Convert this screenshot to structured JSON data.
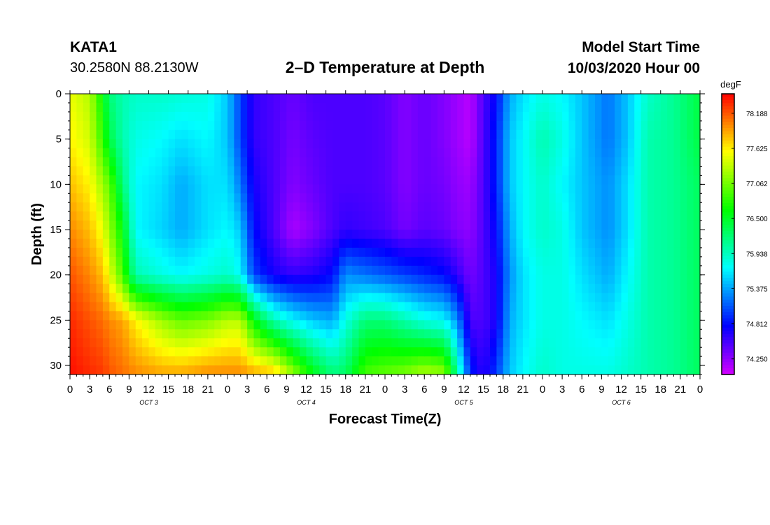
{
  "header": {
    "station": "KATA1",
    "coords": "30.2580N 88.2130W",
    "model_start_label": "Model Start Time",
    "model_start_value": "10/03/2020 Hour 00"
  },
  "chart_data": {
    "type": "heatmap",
    "title": "2–D Temperature at Depth",
    "xlabel": "Forecast Time(Z)",
    "ylabel": "Depth (ft)",
    "x_range_hours": [
      0,
      96
    ],
    "x_tick_labels": [
      "0",
      "3",
      "6",
      "9",
      "12",
      "15",
      "18",
      "21",
      "0",
      "3",
      "6",
      "9",
      "12",
      "15",
      "18",
      "21",
      "0",
      "3",
      "6",
      "9",
      "12",
      "15",
      "18",
      "21",
      "0",
      "3",
      "6",
      "9",
      "12",
      "15",
      "18",
      "21",
      "0"
    ],
    "day_labels": [
      "OCT 3",
      "OCT 4",
      "OCT 5",
      "OCT 6"
    ],
    "y_range": [
      0,
      31
    ],
    "y_ticks": [
      0,
      5,
      10,
      15,
      20,
      25,
      30
    ],
    "colorbar": {
      "unit": "degF",
      "range": [
        74.0,
        78.5
      ],
      "tick_values": [
        78.188,
        77.625,
        77.062,
        76.5,
        75.938,
        75.375,
        74.812,
        74.25
      ],
      "tick_labels": [
        "78.188",
        "77.625",
        "77.062",
        "76.500",
        "75.938",
        "75.375",
        "74.812",
        "74.250"
      ]
    },
    "profiles_degF": [
      {
        "hour": 0,
        "values": [
          77.5,
          77.6,
          77.8,
          78.0,
          78.2,
          78.35,
          78.45
        ]
      },
      {
        "hour": 3,
        "values": [
          77.3,
          77.4,
          77.6,
          77.8,
          78.0,
          78.2,
          78.35
        ]
      },
      {
        "hour": 5,
        "values": [
          76.6,
          76.8,
          77.2,
          77.5,
          77.8,
          78.1,
          78.3
        ]
      },
      {
        "hour": 6,
        "values": [
          76.2,
          76.4,
          77.0,
          77.2,
          77.5,
          78.0,
          78.2
        ]
      },
      {
        "hour": 8,
        "values": [
          76.0,
          76.0,
          76.2,
          76.6,
          76.9,
          77.9,
          78.1
        ]
      },
      {
        "hour": 10,
        "values": [
          75.9,
          75.8,
          75.7,
          75.7,
          76.0,
          77.6,
          78.0
        ]
      },
      {
        "hour": 14,
        "values": [
          75.9,
          75.7,
          75.6,
          75.55,
          75.8,
          77.2,
          77.9
        ]
      },
      {
        "hour": 17,
        "values": [
          75.85,
          75.6,
          75.4,
          75.4,
          75.7,
          77.0,
          77.9
        ]
      },
      {
        "hour": 21,
        "values": [
          75.8,
          75.7,
          75.6,
          75.6,
          75.8,
          77.1,
          78.0
        ]
      },
      {
        "hour": 24,
        "values": [
          75.5,
          75.5,
          75.6,
          75.7,
          75.9,
          77.3,
          78.0
        ]
      },
      {
        "hour": 26,
        "values": [
          75.0,
          75.0,
          75.2,
          75.5,
          75.7,
          77.3,
          78.0
        ]
      },
      {
        "hour": 28,
        "values": [
          74.6,
          74.6,
          74.7,
          74.8,
          75.0,
          76.6,
          77.9
        ]
      },
      {
        "hour": 31,
        "values": [
          74.5,
          74.5,
          74.5,
          74.5,
          74.7,
          76.0,
          77.8
        ]
      },
      {
        "hour": 34,
        "values": [
          74.4,
          74.35,
          74.3,
          74.15,
          74.6,
          75.7,
          77.2
        ]
      },
      {
        "hour": 37,
        "values": [
          74.5,
          74.45,
          74.4,
          74.3,
          74.65,
          75.5,
          76.6
        ]
      },
      {
        "hour": 40,
        "values": [
          74.5,
          74.5,
          74.5,
          74.5,
          74.8,
          75.4,
          76.2
        ]
      },
      {
        "hour": 42,
        "values": [
          74.5,
          74.5,
          74.5,
          74.6,
          75.3,
          75.8,
          76.3
        ]
      },
      {
        "hour": 45,
        "values": [
          74.5,
          74.5,
          74.5,
          74.55,
          75.2,
          76.2,
          76.9
        ]
      },
      {
        "hour": 48,
        "values": [
          74.45,
          74.45,
          74.45,
          74.5,
          75.1,
          76.2,
          77.0
        ]
      },
      {
        "hour": 51,
        "values": [
          74.3,
          74.3,
          74.3,
          74.35,
          75.0,
          76.0,
          77.1
        ]
      },
      {
        "hour": 54,
        "values": [
          74.4,
          74.4,
          74.4,
          74.45,
          74.9,
          75.8,
          77.3
        ]
      },
      {
        "hour": 57,
        "values": [
          74.3,
          74.3,
          74.35,
          74.4,
          74.8,
          75.7,
          77.2
        ]
      },
      {
        "hour": 59,
        "values": [
          74.2,
          74.2,
          74.25,
          74.3,
          74.6,
          75.3,
          76.1
        ]
      },
      {
        "hour": 61,
        "values": [
          74.1,
          74.1,
          74.2,
          74.25,
          74.35,
          74.5,
          74.9
        ]
      },
      {
        "hour": 63,
        "values": [
          74.5,
          74.5,
          74.5,
          74.5,
          74.5,
          74.5,
          74.6
        ]
      },
      {
        "hour": 65,
        "values": [
          74.8,
          74.9,
          74.9,
          74.8,
          74.7,
          74.7,
          75.0
        ]
      },
      {
        "hour": 67,
        "values": [
          75.4,
          75.5,
          75.5,
          75.4,
          75.3,
          75.4,
          75.5
        ]
      },
      {
        "hour": 69,
        "values": [
          75.6,
          75.7,
          75.7,
          75.7,
          75.6,
          75.6,
          75.7
        ]
      },
      {
        "hour": 72,
        "values": [
          75.8,
          76.0,
          75.9,
          75.9,
          75.8,
          75.8,
          75.9
        ]
      },
      {
        "hour": 75,
        "values": [
          75.7,
          75.8,
          75.7,
          75.8,
          75.8,
          75.8,
          75.8
        ]
      },
      {
        "hour": 78,
        "values": [
          75.5,
          75.5,
          75.5,
          75.5,
          75.6,
          75.7,
          75.8
        ]
      },
      {
        "hour": 82,
        "values": [
          75.2,
          75.2,
          75.3,
          75.3,
          75.4,
          75.6,
          75.8
        ]
      },
      {
        "hour": 85,
        "values": [
          75.5,
          75.5,
          75.6,
          75.6,
          75.7,
          75.8,
          75.9
        ]
      },
      {
        "hour": 88,
        "values": [
          75.9,
          76.0,
          76.0,
          76.0,
          76.0,
          76.0,
          76.0
        ]
      },
      {
        "hour": 92,
        "values": [
          76.1,
          76.1,
          76.1,
          76.1,
          76.1,
          76.1,
          76.1
        ]
      },
      {
        "hour": 96,
        "values": [
          76.4,
          76.4,
          76.3,
          76.3,
          76.3,
          76.3,
          76.3
        ]
      }
    ],
    "profile_depths_ft": [
      0,
      5,
      10,
      15,
      20,
      25,
      31
    ]
  }
}
